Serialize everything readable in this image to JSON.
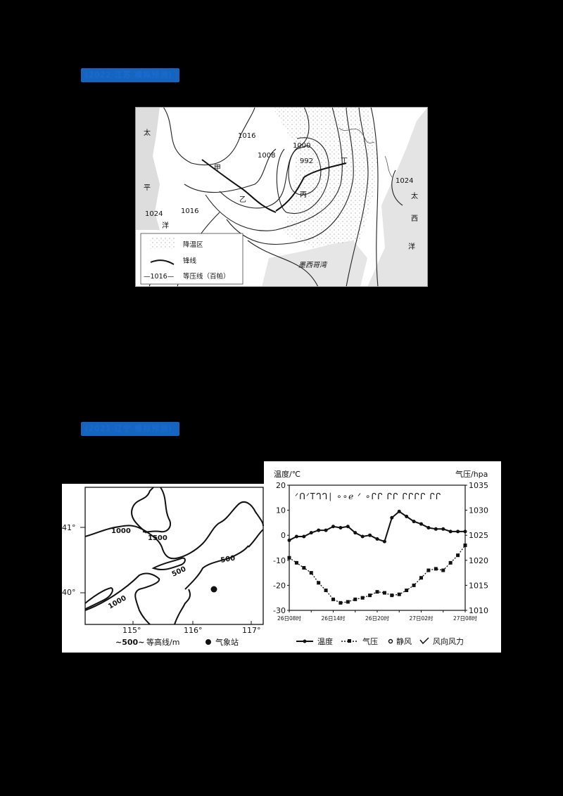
{
  "page": {
    "background": "#000000"
  },
  "headings": [
    {
      "text": "(2022·江苏·模拟预测)",
      "color": "#1565c0"
    },
    {
      "text": "(2021·辽宁·模拟预测)",
      "color": "#1565c0"
    }
  ],
  "figure1": {
    "ocean_labels": [
      "太",
      "平",
      "洋",
      "太",
      "西",
      "洋"
    ],
    "gulf_label": "墨西哥湾",
    "isobars": [
      "1016",
      "1008",
      "1000",
      "992",
      "1024",
      "1016",
      "1024"
    ],
    "points": [
      "甲",
      "乙",
      "丙",
      "丁"
    ],
    "legend": {
      "cooling_area": "降温区",
      "front": "锋线",
      "isobar_sample": "1016",
      "isobar_label": "等压线（百帕）"
    }
  },
  "figure2_map": {
    "lat_labels": [
      "41°",
      "40°"
    ],
    "lon_labels": [
      "115°",
      "116°",
      "117°"
    ],
    "contours": [
      "1000",
      "1500",
      "500",
      "500",
      "1000"
    ],
    "legend": {
      "contour_sample": "500",
      "contour_label": "等高线/m",
      "station_label": "气象站"
    }
  },
  "chart_data": {
    "type": "line",
    "title": "",
    "xlabel": "",
    "ylabel_left": "温度/℃",
    "ylabel_right": "气压/hpa",
    "ylim_left": [
      -30,
      20
    ],
    "ylim_right": [
      1010,
      1035
    ],
    "yticks_left": [
      "20",
      "10",
      "0",
      "-10",
      "-20",
      "-30"
    ],
    "yticks_right": [
      "1035",
      "1030",
      "1025",
      "1020",
      "1015",
      "1010"
    ],
    "x_tick_labels": [
      "26日08时",
      "26日14时",
      "26日20时",
      "27日02时",
      "27日08时"
    ],
    "x_hours": [
      0,
      1,
      2,
      3,
      4,
      5,
      6,
      7,
      8,
      9,
      10,
      11,
      12,
      13,
      14,
      15,
      16,
      17,
      18,
      19,
      20,
      21,
      22,
      23,
      24
    ],
    "series": [
      {
        "name": "温度",
        "axis": "left",
        "values": [
          -2,
          -0.5,
          -0.5,
          1,
          2,
          2,
          3.5,
          3,
          3.5,
          1,
          -0.5,
          0,
          -1.5,
          -2.5,
          7,
          9.5,
          7.5,
          5.5,
          4.5,
          3,
          2.5,
          2.5,
          1.5,
          1.5,
          1.5
        ]
      },
      {
        "name": "气压",
        "axis": "right",
        "values": [
          1020.5,
          1019.5,
          1018.5,
          1017.5,
          1015.5,
          1014,
          1012.2,
          1011.5,
          1011.7,
          1012.2,
          1012.5,
          1013,
          1013.7,
          1013.5,
          1013,
          1013.2,
          1014,
          1015,
          1016.5,
          1018,
          1018.3,
          1018,
          1019.5,
          1021,
          1023
        ]
      }
    ],
    "wind_symbols_note": "wind barbs row at top; 静风 (calm) circles around 26日14-17时",
    "legend": [
      "温度",
      "气压",
      "静风",
      "风向风力"
    ]
  }
}
